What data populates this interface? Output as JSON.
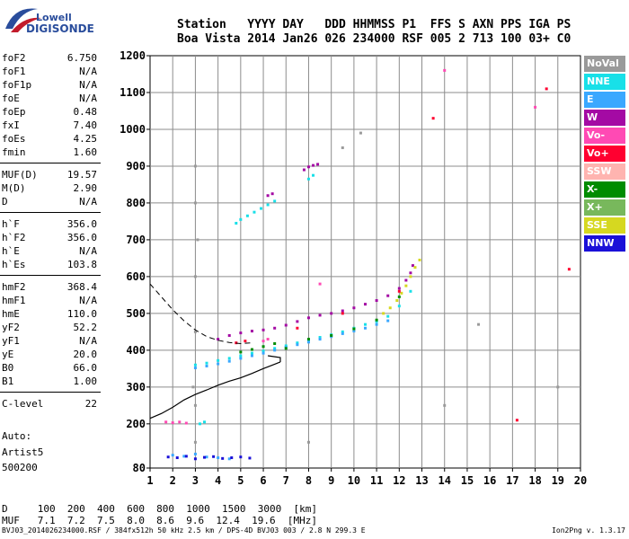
{
  "logo": {
    "line1": "Lowell",
    "line2": "DIGISONDE"
  },
  "header": {
    "line1": "Station   YYYY DAY   DDD HHMMSS P1  FFS S AXN PPS IGA PS",
    "line2": "Boa Vista 2014 Jan26 026 234000 RSF 005 2 713 100 03+ C0"
  },
  "params": [
    [
      {
        "name": "foF2",
        "value": "6.750"
      },
      {
        "name": "foF1",
        "value": "N/A"
      },
      {
        "name": "foF1p",
        "value": "N/A"
      },
      {
        "name": "foE",
        "value": "N/A"
      },
      {
        "name": "foEp",
        "value": "0.48"
      },
      {
        "name": "fxI",
        "value": "7.40"
      },
      {
        "name": "foEs",
        "value": "4.25"
      },
      {
        "name": "fmin",
        "value": "1.60"
      }
    ],
    [
      {
        "name": "MUF(D)",
        "value": "19.57"
      },
      {
        "name": "M(D)",
        "value": "2.90"
      },
      {
        "name": "D",
        "value": "N/A"
      }
    ],
    [
      {
        "name": "h`F",
        "value": "356.0"
      },
      {
        "name": "h`F2",
        "value": "356.0"
      },
      {
        "name": "h`E",
        "value": "N/A"
      },
      {
        "name": "h`Es",
        "value": "103.8"
      }
    ],
    [
      {
        "name": "hmF2",
        "value": "368.4"
      },
      {
        "name": "hmF1",
        "value": "N/A"
      },
      {
        "name": "hmE",
        "value": "110.0"
      },
      {
        "name": "yF2",
        "value": "52.2"
      },
      {
        "name": "yF1",
        "value": "N/A"
      },
      {
        "name": "yE",
        "value": "20.0"
      },
      {
        "name": "B0",
        "value": "66.0"
      },
      {
        "name": "B1",
        "value": "1.00"
      }
    ],
    [
      {
        "name": "C-level",
        "value": "22"
      }
    ]
  ],
  "auto": {
    "line1": "Auto:",
    "line2": "Artist5",
    "line3": "500200"
  },
  "legend": [
    {
      "label": "NoVal",
      "color": "#9a9a9a"
    },
    {
      "label": "NNE",
      "color": "#18e0e8"
    },
    {
      "label": "E",
      "color": "#3aa8ff"
    },
    {
      "label": "W",
      "color": "#a40aa4"
    },
    {
      "label": "Vo-",
      "color": "#ff4ab4"
    },
    {
      "label": "Vo+",
      "color": "#ff0030"
    },
    {
      "label": "SSW",
      "color": "#ffb4b0"
    },
    {
      "label": "X-",
      "color": "#008c00"
    },
    {
      "label": "X+",
      "color": "#78b85c"
    },
    {
      "label": "SSE",
      "color": "#d6d820"
    },
    {
      "label": "NNW",
      "color": "#1a10d8"
    }
  ],
  "muf_table": {
    "row_d": "D     100  200  400  600  800  1000  1500  3000  [km]",
    "row_muf": "MUF   7.1  7.2  7.5  8.0  8.6  9.6  12.4  19.6  [MHz]"
  },
  "footer": {
    "left": "BVJ03_2014026234000.RSF / 384fx512h 50 kHz 2.5 km / DPS-4D BVJ03 003 / 2.8 N 299.3 E",
    "right": "Ion2Png v. 1.3.17"
  },
  "chart_data": {
    "type": "scatter",
    "xlim": [
      1,
      20
    ],
    "ylim": [
      80,
      1200
    ],
    "x_ticks": [
      "1",
      "2",
      "3",
      "4",
      "5",
      "6",
      "7",
      "8",
      "9",
      "10",
      "11",
      "12",
      "13",
      "14",
      "15",
      "16",
      "17",
      "18",
      "19",
      "20"
    ],
    "y_ticks": [
      "80",
      "200",
      "300",
      "400",
      "500",
      "600",
      "700",
      "800",
      "900",
      "1000",
      "1100",
      "1200"
    ],
    "grid": true,
    "legend_position": "right",
    "series": [
      {
        "name": "W",
        "color": "#a40aa4",
        "points": [
          [
            4.0,
            430
          ],
          [
            4.5,
            440
          ],
          [
            5.0,
            447
          ],
          [
            5.5,
            452
          ],
          [
            6.0,
            455
          ],
          [
            6.5,
            460
          ],
          [
            7.0,
            468
          ],
          [
            7.5,
            478
          ],
          [
            8.0,
            488
          ],
          [
            8.5,
            495
          ],
          [
            9.0,
            500
          ],
          [
            9.5,
            507
          ],
          [
            10.0,
            515
          ],
          [
            10.5,
            525
          ],
          [
            11.0,
            535
          ],
          [
            11.5,
            548
          ],
          [
            12.0,
            568
          ],
          [
            12.3,
            590
          ],
          [
            12.5,
            610
          ],
          [
            12.6,
            630
          ],
          [
            7.8,
            890
          ],
          [
            8.0,
            898
          ],
          [
            8.2,
            902
          ],
          [
            8.4,
            905
          ],
          [
            6.2,
            820
          ],
          [
            6.4,
            825
          ]
        ]
      },
      {
        "name": "NNE",
        "color": "#18e0e8",
        "points": [
          [
            3.0,
            360
          ],
          [
            3.5,
            365
          ],
          [
            4.0,
            372
          ],
          [
            4.5,
            378
          ],
          [
            5.0,
            385
          ],
          [
            5.5,
            392
          ],
          [
            6.0,
            398
          ],
          [
            6.5,
            405
          ],
          [
            7.0,
            412
          ],
          [
            7.5,
            420
          ],
          [
            8.0,
            428
          ],
          [
            8.5,
            435
          ],
          [
            9.0,
            442
          ],
          [
            9.5,
            450
          ],
          [
            10.0,
            460
          ],
          [
            10.5,
            470
          ],
          [
            11.0,
            478
          ],
          [
            11.5,
            492
          ],
          [
            12.0,
            520
          ],
          [
            12.5,
            560
          ],
          [
            4.8,
            745
          ],
          [
            5.0,
            755
          ],
          [
            5.3,
            765
          ],
          [
            5.6,
            775
          ],
          [
            5.9,
            785
          ],
          [
            6.2,
            795
          ],
          [
            6.5,
            805
          ],
          [
            8.0,
            865
          ],
          [
            8.2,
            875
          ],
          [
            3.2,
            200
          ],
          [
            3.4,
            205
          ]
        ]
      },
      {
        "name": "E",
        "color": "#3aa8ff",
        "points": [
          [
            3.0,
            352
          ],
          [
            3.5,
            357
          ],
          [
            4.0,
            363
          ],
          [
            4.5,
            370
          ],
          [
            5.0,
            378
          ],
          [
            5.5,
            385
          ],
          [
            6.0,
            392
          ],
          [
            6.5,
            400
          ],
          [
            7.0,
            408
          ],
          [
            7.5,
            415
          ],
          [
            8.0,
            422
          ],
          [
            8.5,
            430
          ],
          [
            9.0,
            437
          ],
          [
            9.5,
            445
          ],
          [
            10.0,
            452
          ],
          [
            10.5,
            460
          ],
          [
            11.0,
            470
          ],
          [
            11.5,
            480
          ],
          [
            2.0,
            115
          ],
          [
            2.5,
            112
          ],
          [
            3.0,
            118
          ],
          [
            3.5,
            110
          ],
          [
            4.0,
            108
          ],
          [
            4.5,
            105
          ]
        ]
      },
      {
        "name": "X-",
        "color": "#008c00",
        "points": [
          [
            5.0,
            395
          ],
          [
            5.5,
            402
          ],
          [
            6.0,
            410
          ],
          [
            6.5,
            418
          ],
          [
            7.0,
            405
          ],
          [
            8.0,
            430
          ],
          [
            9.0,
            440
          ],
          [
            10.0,
            458
          ],
          [
            11.0,
            482
          ],
          [
            12.0,
            545
          ]
        ]
      },
      {
        "name": "SSE",
        "color": "#d6d820",
        "points": [
          [
            11.3,
            500
          ],
          [
            11.6,
            515
          ],
          [
            11.9,
            535
          ],
          [
            12.1,
            555
          ],
          [
            12.3,
            575
          ],
          [
            12.5,
            600
          ],
          [
            12.7,
            625
          ],
          [
            12.9,
            645
          ]
        ]
      },
      {
        "name": "NNW",
        "color": "#1a10d8",
        "points": [
          [
            1.8,
            110
          ],
          [
            2.2,
            108
          ],
          [
            2.6,
            112
          ],
          [
            3.0,
            105
          ],
          [
            3.4,
            109
          ],
          [
            3.8,
            111
          ],
          [
            4.2,
            106
          ],
          [
            4.6,
            108
          ],
          [
            5.0,
            110
          ],
          [
            5.4,
            107
          ]
        ]
      },
      {
        "name": "Vo-",
        "color": "#ff4ab4",
        "points": [
          [
            1.7,
            205
          ],
          [
            2.0,
            203
          ],
          [
            2.3,
            205
          ],
          [
            2.6,
            202
          ],
          [
            6.0,
            425
          ],
          [
            6.2,
            430
          ],
          [
            8.5,
            580
          ],
          [
            14.0,
            1160
          ],
          [
            18.0,
            1060
          ]
        ]
      },
      {
        "name": "Vo+",
        "color": "#ff0030",
        "points": [
          [
            4.8,
            420
          ],
          [
            5.2,
            425
          ],
          [
            7.5,
            460
          ],
          [
            9.5,
            500
          ],
          [
            12.0,
            560
          ],
          [
            13.5,
            1030
          ],
          [
            18.5,
            1110
          ],
          [
            19.5,
            620
          ],
          [
            17.2,
            210
          ]
        ]
      },
      {
        "name": "NoVal",
        "color": "#9a9a9a",
        "points": [
          [
            3.0,
            250
          ],
          [
            3.0,
            450
          ],
          [
            3.0,
            600
          ],
          [
            3.0,
            900
          ],
          [
            3.1,
            700
          ],
          [
            2.9,
            300
          ],
          [
            3.0,
            150
          ],
          [
            3.0,
            800
          ],
          [
            9.5,
            950
          ],
          [
            10.3,
            990
          ],
          [
            15.5,
            470
          ],
          [
            14.0,
            250
          ],
          [
            19.0,
            300
          ],
          [
            8.0,
            150
          ]
        ]
      }
    ],
    "profile_line": [
      [
        1.0,
        215
      ],
      [
        1.5,
        228
      ],
      [
        2.0,
        245
      ],
      [
        2.5,
        265
      ],
      [
        3.0,
        280
      ],
      [
        3.5,
        292
      ],
      [
        4.0,
        305
      ],
      [
        4.5,
        316
      ],
      [
        5.0,
        325
      ],
      [
        5.5,
        337
      ],
      [
        6.0,
        350
      ],
      [
        6.5,
        362
      ],
      [
        6.75,
        368
      ]
    ],
    "profile_end": [
      [
        6.75,
        368
      ],
      [
        6.75,
        380
      ],
      [
        6.2,
        385
      ]
    ],
    "muf_curve": [
      [
        1.0,
        580
      ],
      [
        1.5,
        545
      ],
      [
        2.0,
        510
      ],
      [
        2.5,
        480
      ],
      [
        3.0,
        455
      ],
      [
        3.5,
        437
      ],
      [
        4.0,
        427
      ],
      [
        4.5,
        421
      ],
      [
        5.0,
        418
      ],
      [
        5.5,
        420
      ]
    ]
  }
}
